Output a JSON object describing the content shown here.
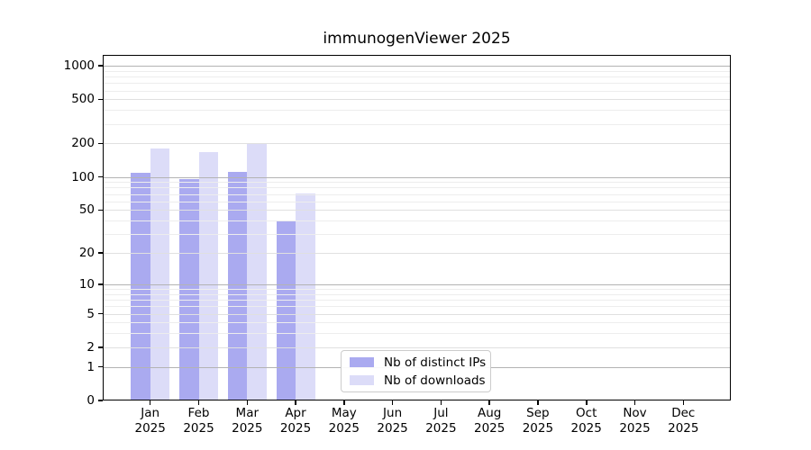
{
  "figure": {
    "title": "immunogenViewer 2025"
  },
  "chart_data": {
    "type": "bar",
    "title": "immunogenViewer 2025",
    "categories": [
      "Jan",
      "Feb",
      "Mar",
      "Apr",
      "May",
      "Jun",
      "Jul",
      "Aug",
      "Sep",
      "Oct",
      "Nov",
      "Dec"
    ],
    "category_year": "2025",
    "series": [
      {
        "name": "Nb of distinct IPs",
        "color": "#aaaaf0",
        "values": [
          108,
          95,
          112,
          39,
          0,
          0,
          0,
          0,
          0,
          0,
          0,
          0
        ]
      },
      {
        "name": "Nb of downloads",
        "color": "#dcdcf8",
        "values": [
          182,
          168,
          200,
          71,
          0,
          0,
          0,
          0,
          0,
          0,
          0,
          0
        ]
      }
    ],
    "yscale": "log10(1+x)",
    "ylim": [
      0,
      1250
    ],
    "yticks": {
      "values": [
        0,
        1,
        2,
        5,
        10,
        20,
        50,
        100,
        200,
        500,
        1000
      ],
      "labels": [
        "0",
        "1",
        "2",
        "5",
        "10",
        "20",
        "50",
        "100",
        "200",
        "500",
        "1000"
      ]
    },
    "decade_gridlines": [
      1,
      10,
      100,
      1000
    ],
    "minor_gridlines": [
      3,
      4,
      6,
      7,
      8,
      9,
      30,
      40,
      60,
      70,
      80,
      90,
      300,
      400,
      600,
      700,
      800,
      900
    ],
    "grid": true,
    "legend": {
      "position": "lower-center",
      "entries": [
        "Nb of distinct IPs",
        "Nb of downloads"
      ]
    }
  }
}
